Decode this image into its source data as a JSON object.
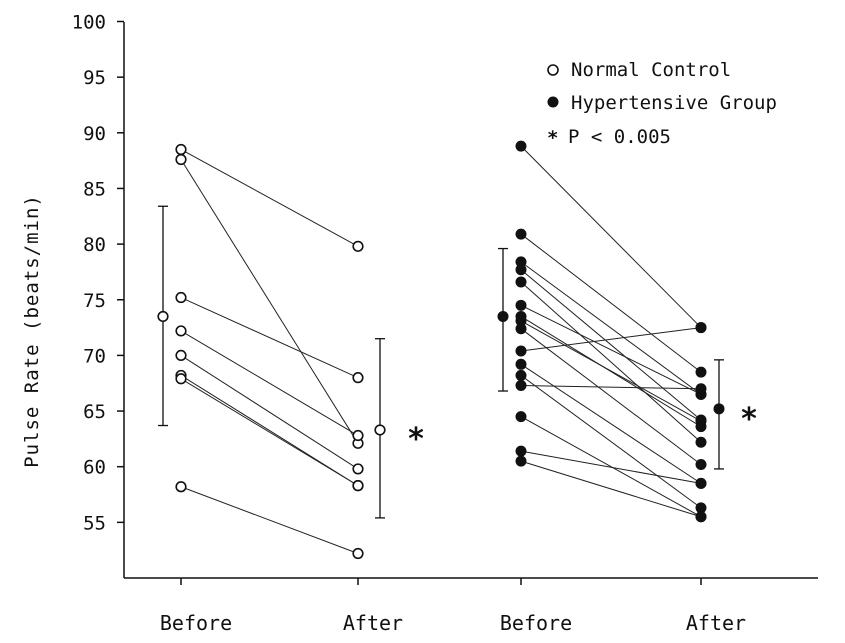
{
  "chart_data": {
    "type": "scatter",
    "title": "",
    "ylabel": "Pulse Rate (beats/min)",
    "xlabel": "",
    "ylim": [
      50,
      100
    ],
    "yticks": [
      55,
      60,
      65,
      70,
      75,
      80,
      85,
      90,
      95,
      100
    ],
    "categories": [
      "Before",
      "After",
      "Before",
      "After"
    ],
    "legend": {
      "position": "top-right",
      "items": [
        {
          "label": "Normal Control",
          "marker": "open-circle"
        },
        {
          "label": "Hypertensive Group",
          "marker": "filled-circle"
        },
        {
          "label": "P < 0.005",
          "marker": "asterisk"
        }
      ]
    },
    "groups": [
      {
        "legend_label": "Normal Control",
        "marker": "open-circle",
        "before_category": 0,
        "after_category": 1,
        "pairs": [
          [
            88.5,
            79.8
          ],
          [
            87.6,
            62.1
          ],
          [
            75.2,
            68.0
          ],
          [
            72.2,
            62.8
          ],
          [
            70.0,
            59.8
          ],
          [
            68.2,
            58.3
          ],
          [
            67.9,
            58.3
          ],
          [
            58.2,
            52.2
          ]
        ],
        "summary": {
          "before": {
            "mean": 73.5,
            "low": 63.7,
            "high": 83.4
          },
          "after": {
            "mean": 63.3,
            "low": 55.4,
            "high": 71.5
          },
          "significance_marker": "*"
        }
      },
      {
        "legend_label": "Hypertensive Group",
        "marker": "filled-circle",
        "before_category": 2,
        "after_category": 3,
        "pairs": [
          [
            88.8,
            72.5
          ],
          [
            80.9,
            68.5
          ],
          [
            78.4,
            66.5
          ],
          [
            77.7,
            64.2
          ],
          [
            76.6,
            62.2
          ],
          [
            74.5,
            66.5
          ],
          [
            73.5,
            63.6
          ],
          [
            73.1,
            64.1
          ],
          [
            72.4,
            60.2
          ],
          [
            70.4,
            72.5
          ],
          [
            69.2,
            58.5
          ],
          [
            68.2,
            56.3
          ],
          [
            67.3,
            67.0
          ],
          [
            64.5,
            55.5
          ],
          [
            61.4,
            58.5
          ],
          [
            60.5,
            55.5
          ]
        ],
        "summary": {
          "before": {
            "mean": 73.5,
            "low": 66.8,
            "high": 79.6
          },
          "after": {
            "mean": 65.2,
            "low": 59.8,
            "high": 69.6
          },
          "significance_marker": "*"
        }
      }
    ]
  },
  "legend": {
    "normal_label": "Normal Control",
    "hyper_label": "Hypertensive Group",
    "p_star": "*",
    "p_label": "P < 0.005"
  },
  "axis": {
    "ylabel": "Pulse Rate (beats/min)"
  },
  "annotations": {
    "normal_star": "*",
    "hyper_star": "*"
  }
}
